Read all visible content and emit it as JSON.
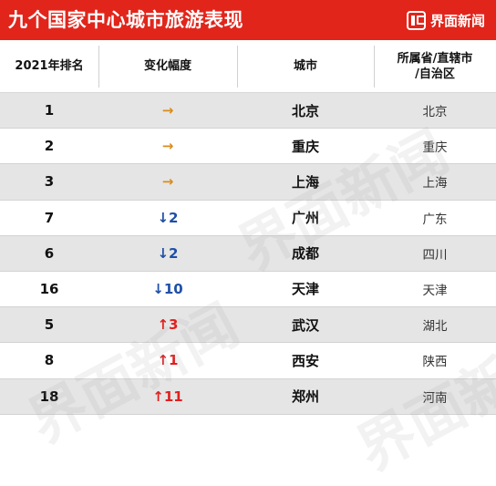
{
  "header": {
    "title": "九个国家中心城市旅游表现",
    "brand": "界面新闻",
    "brand_icon": "jiemian-logo-icon"
  },
  "columns": {
    "rank": "2021年排名",
    "change": "变化幅度",
    "city": "城市",
    "province_line1": "所属省/直辖市",
    "province_line2": "/自治区"
  },
  "rows": [
    {
      "rank": "1",
      "change": "→",
      "change_dir": "flat",
      "city": "北京",
      "province": "北京"
    },
    {
      "rank": "2",
      "change": "→",
      "change_dir": "flat",
      "city": "重庆",
      "province": "重庆"
    },
    {
      "rank": "3",
      "change": "→",
      "change_dir": "flat",
      "city": "上海",
      "province": "上海"
    },
    {
      "rank": "7",
      "change": "↓2",
      "change_dir": "down",
      "city": "广州",
      "province": "广东"
    },
    {
      "rank": "6",
      "change": "↓2",
      "change_dir": "down",
      "city": "成都",
      "province": "四川"
    },
    {
      "rank": "16",
      "change": "↓10",
      "change_dir": "down",
      "city": "天津",
      "province": "天津"
    },
    {
      "rank": "5",
      "change": "↑3",
      "change_dir": "up",
      "city": "武汉",
      "province": "湖北"
    },
    {
      "rank": "8",
      "change": "↑1",
      "change_dir": "up",
      "city": "西安",
      "province": "陕西"
    },
    {
      "rank": "18",
      "change": "↑11",
      "change_dir": "up",
      "city": "郑州",
      "province": "河南"
    }
  ],
  "colors": {
    "header_red": "#e1251b",
    "flat_arrow": "#d98c1c",
    "down_blue": "#1f4fa8",
    "up_red": "#e02020",
    "stripe_gray": "#e5e5e5"
  },
  "watermark": "界面新闻"
}
